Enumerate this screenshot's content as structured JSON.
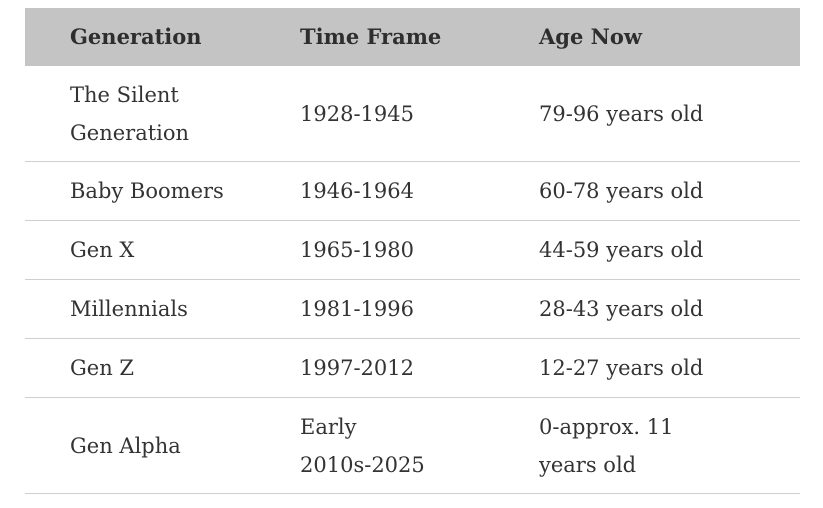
{
  "table": {
    "headers": [
      "Generation",
      "Time Frame",
      "Age Now"
    ],
    "rows": [
      [
        "The Silent Generation",
        "1928-1945",
        "79-96 years old"
      ],
      [
        "Baby Boomers",
        "1946-1964",
        "60-78 years old"
      ],
      [
        "Gen X",
        "1965-1980",
        "44-59 years old"
      ],
      [
        "Millennials",
        "1981-1996",
        "28-43 years old"
      ],
      [
        "Gen Z",
        "1997-2012",
        "12-27 years old"
      ],
      [
        "Gen Alpha",
        "Early 2010s-2025",
        "0-approx. 11 years old"
      ]
    ]
  }
}
